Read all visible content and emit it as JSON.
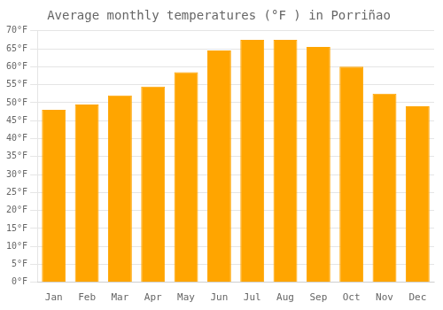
{
  "chart_data": {
    "type": "bar",
    "title": "Average monthly temperatures (°F ) in Porriñao",
    "categories": [
      "Jan",
      "Feb",
      "Mar",
      "Apr",
      "May",
      "Jun",
      "Jul",
      "Aug",
      "Sep",
      "Oct",
      "Nov",
      "Dec"
    ],
    "values": [
      48,
      49.5,
      52,
      54.5,
      58.5,
      64.5,
      67.5,
      67.5,
      65.5,
      60,
      52.5,
      49
    ],
    "color": "#FFA500",
    "ylim": [
      0,
      70
    ],
    "yticks": [
      {
        "value": 0,
        "label": "0°F"
      },
      {
        "value": 5,
        "label": "5°F"
      },
      {
        "value": 10,
        "label": "10°F"
      },
      {
        "value": 15,
        "label": "15°F"
      },
      {
        "value": 20,
        "label": "20°F"
      },
      {
        "value": 25,
        "label": "25°F"
      },
      {
        "value": 30,
        "label": "30°F"
      },
      {
        "value": 35,
        "label": "35°F"
      },
      {
        "value": 40,
        "label": "40°F"
      },
      {
        "value": 45,
        "label": "45°F"
      },
      {
        "value": 50,
        "label": "50°F"
      },
      {
        "value": 55,
        "label": "55°F"
      },
      {
        "value": 60,
        "label": "60°F"
      },
      {
        "value": 65,
        "label": "65°F"
      },
      {
        "value": 70,
        "label": "70°F"
      }
    ],
    "grid": true
  }
}
